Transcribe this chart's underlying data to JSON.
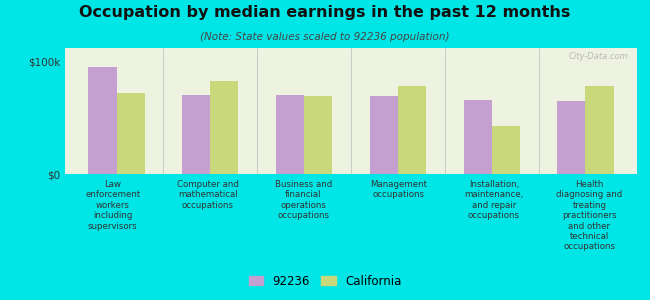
{
  "title": "Occupation by median earnings in the past 12 months",
  "subtitle": "(Note: State values scaled to 92236 population)",
  "background_color": "#00e5e5",
  "plot_bg_color": "#eef2e0",
  "categories": [
    "Law\nenforcement\nworkers\nincluding\nsupervisors",
    "Computer and\nmathematical\noccupations",
    "Business and\nfinancial\noperations\noccupations",
    "Management\noccupations",
    "Installation,\nmaintenance,\nand repair\noccupations",
    "Health\ndiagnosing and\ntreating\npractitioners\nand other\ntechnical\noccupations"
  ],
  "values_92236": [
    95000,
    70000,
    70000,
    69000,
    66000,
    65000
  ],
  "values_california": [
    72000,
    83000,
    69000,
    78000,
    43000,
    78000
  ],
  "color_92236": "#c4a0d0",
  "color_california": "#c8d87a",
  "ylabel_ticks": [
    "$0",
    "$100k"
  ],
  "ytick_vals": [
    0,
    100000
  ],
  "ylim": [
    0,
    112000
  ],
  "legend_label_92236": "92236",
  "legend_label_ca": "California",
  "watermark": "City-Data.com"
}
